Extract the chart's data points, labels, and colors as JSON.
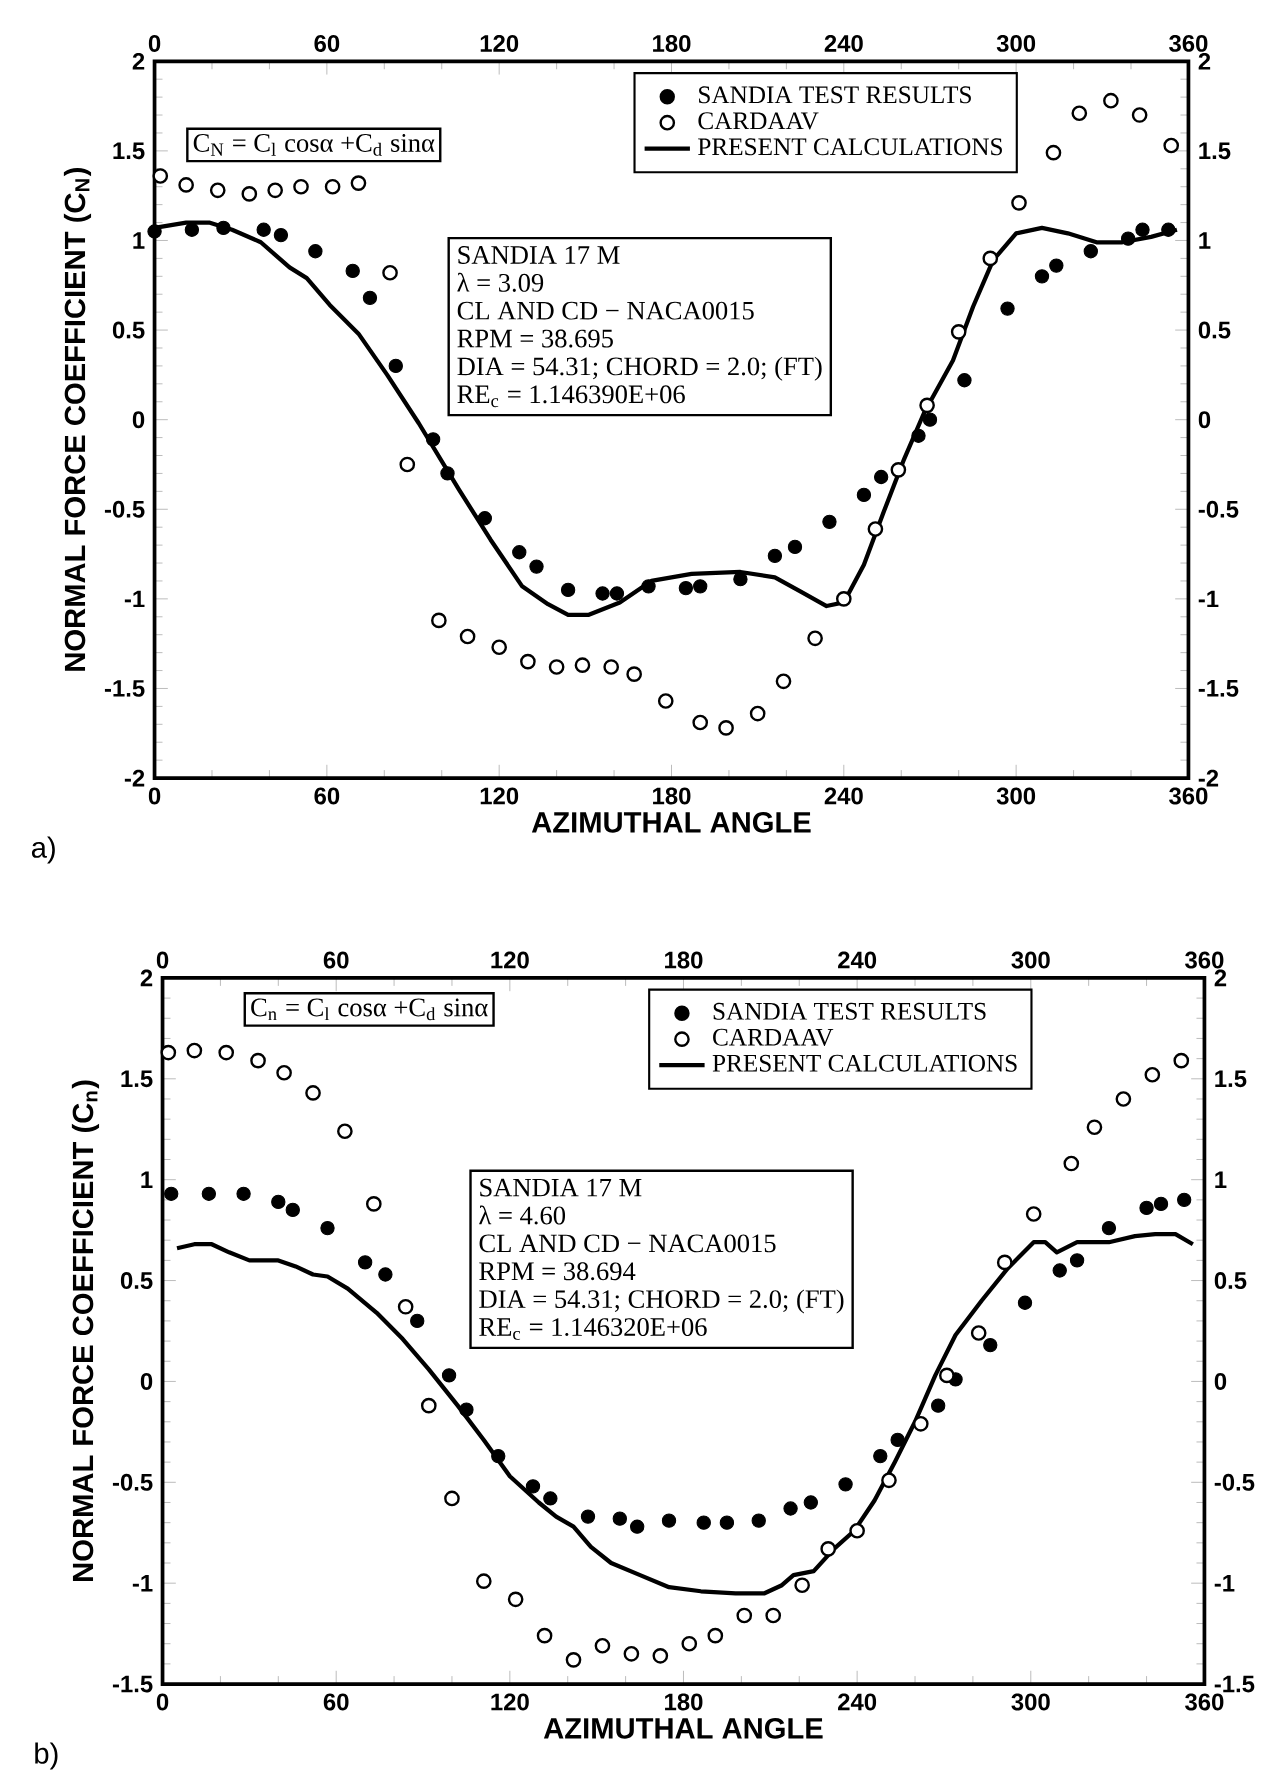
{
  "chart_data": [
    {
      "type": "scatter",
      "xlabel": "AZIMUTHAL ANGLE",
      "ylabel": "NORMAL FORCE COEFFICIENT (C$_{N}$)",
      "xlim": [
        0,
        360
      ],
      "xticks": [
        0,
        60,
        120,
        180,
        240,
        300,
        360
      ],
      "ylim": [
        -2,
        2
      ],
      "yticks": [
        -2,
        -1.5,
        -1,
        -0.5,
        0,
        0.5,
        1,
        1.5,
        2
      ],
      "x2lim": [
        0,
        360
      ],
      "x2ticks": [
        0,
        60,
        120,
        180,
        240,
        300,
        360
      ],
      "y2lim": [
        -2,
        2
      ],
      "y2ticks": [
        -2,
        -1.5,
        -1,
        -0.5,
        0,
        0.5,
        1,
        1.5,
        2
      ],
      "legend": "top right",
      "annotations": [
        "C$_{N}$ = C$_{l}$ cosα +C$_{d}$ sinα",
        "SANDIA 17 M",
        "λ =  3.09",
        "CL AND CD −  NACA0015",
        "RPM =  38.695",
        "DIA =  54.31; CHORD = 2.0; (FT)",
        "RE$_{c}$ =  1.146390E+06",
        "a)"
      ],
      "series": [
        {
          "name": "SANDIA TEST RESULTS",
          "marker": "circle",
          "color": "#000000",
          "x": [
            0,
            13,
            24,
            38,
            44,
            56,
            69,
            75,
            84,
            97,
            102,
            115,
            127,
            133,
            144,
            156,
            161,
            172,
            185,
            190,
            204,
            216,
            223,
            235,
            247,
            253,
            266,
            270,
            282,
            297,
            309,
            314,
            326,
            339,
            344,
            353
          ],
          "values": [
            1.05,
            1.06,
            1.07,
            1.06,
            1.03,
            0.94,
            0.83,
            0.68,
            0.3,
            -0.11,
            -0.3,
            -0.55,
            -0.74,
            -0.82,
            -0.95,
            -0.97,
            -0.97,
            -0.93,
            -0.94,
            -0.93,
            -0.89,
            -0.76,
            -0.71,
            -0.57,
            -0.42,
            -0.32,
            -0.09,
            0.0,
            0.22,
            0.62,
            0.8,
            0.86,
            0.94,
            1.01,
            1.06,
            1.06
          ]
        },
        {
          "name": "CARDAAV",
          "marker": "circle",
          "color": "#000000",
          "x": [
            2,
            11,
            22,
            33,
            42,
            51,
            62,
            71,
            82,
            88,
            99,
            109,
            120,
            130,
            140,
            149,
            159,
            167,
            178,
            190,
            199,
            210,
            219,
            230,
            240,
            251,
            259,
            269,
            280,
            291,
            301,
            313,
            322,
            333,
            343,
            354
          ],
          "values": [
            1.36,
            1.31,
            1.28,
            1.26,
            1.28,
            1.3,
            1.3,
            1.32,
            0.82,
            -0.25,
            -1.12,
            -1.21,
            -1.27,
            -1.35,
            -1.38,
            -1.37,
            -1.38,
            -1.42,
            -1.57,
            -1.69,
            -1.72,
            -1.64,
            -1.46,
            -1.22,
            -1.0,
            -0.61,
            -0.28,
            0.08,
            0.49,
            0.9,
            1.21,
            1.49,
            1.71,
            1.78,
            1.7,
            1.53
          ]
        },
        {
          "name": "PRESENT CALCULATIONS",
          "type": "line",
          "marker": "none",
          "line_style": "solid",
          "color": "#000000",
          "x": [
            0,
            11,
            19,
            27,
            37,
            47,
            53,
            61,
            71,
            81,
            92,
            106,
            117,
            128,
            137,
            144,
            151,
            162,
            173,
            187,
            204,
            216,
            225,
            234,
            240,
            247,
            254,
            261,
            268,
            278,
            285,
            292,
            300,
            309,
            318,
            328,
            337,
            347,
            356
          ],
          "values": [
            1.07,
            1.1,
            1.1,
            1.06,
            0.99,
            0.85,
            0.79,
            0.64,
            0.48,
            0.25,
            -0.02,
            -0.39,
            -0.67,
            -0.93,
            -1.03,
            -1.09,
            -1.09,
            -1.02,
            -0.9,
            -0.86,
            -0.85,
            -0.88,
            -0.96,
            -1.04,
            -1.02,
            -0.81,
            -0.51,
            -0.22,
            0.04,
            0.33,
            0.63,
            0.89,
            1.04,
            1.07,
            1.04,
            0.99,
            0.99,
            1.02,
            1.06
          ]
        }
      ]
    },
    {
      "type": "scatter",
      "xlabel": "AZIMUTHAL ANGLE",
      "ylabel": "NORMAL FORCE COEFFICIENT (C$_{n}$)",
      "xlim": [
        0,
        360
      ],
      "xticks": [
        0,
        60,
        120,
        180,
        240,
        300,
        360
      ],
      "ylim": [
        -1.5,
        2
      ],
      "yticks": [
        -1.5,
        -1,
        -0.5,
        0,
        0.5,
        1,
        1.5,
        2
      ],
      "x2lim": [
        0,
        360
      ],
      "x2ticks": [
        0,
        60,
        120,
        180,
        240,
        300,
        360
      ],
      "y2lim": [
        -1.5,
        2
      ],
      "y2ticks": [
        -1.5,
        -1,
        -0.5,
        0,
        0.5,
        1,
        1.5,
        2
      ],
      "legend": "top right",
      "annotations": [
        "C$_{n}$ = C$_{l}$ cosα +C$_{d}$ sinα",
        "SANDIA 17 M",
        "λ =  4.60",
        "CL AND CD −  NACA0015",
        "RPM =  38.694",
        "DIA =  54.31; CHORD = 2.0; (FT)",
        "RE$_{c}$ =  1.146320E+06",
        "b)"
      ],
      "series": [
        {
          "name": "SANDIA TEST RESULTS",
          "marker": "circle",
          "color": "#000000",
          "x": [
            3,
            16,
            28,
            40,
            45,
            57,
            70,
            77,
            88,
            99,
            105,
            116,
            128,
            134,
            147,
            158,
            164,
            175,
            187,
            195,
            206,
            217,
            224,
            236,
            248,
            254,
            268,
            274,
            286,
            298,
            310,
            316,
            327,
            340,
            345,
            353
          ],
          "values": [
            0.93,
            0.93,
            0.93,
            0.89,
            0.85,
            0.76,
            0.59,
            0.53,
            0.3,
            0.03,
            -0.14,
            -0.37,
            -0.52,
            -0.58,
            -0.67,
            -0.68,
            -0.72,
            -0.69,
            -0.7,
            -0.7,
            -0.69,
            -0.63,
            -0.6,
            -0.51,
            -0.37,
            -0.29,
            -0.12,
            0.01,
            0.18,
            0.39,
            0.55,
            0.6,
            0.76,
            0.86,
            0.88,
            0.9
          ]
        },
        {
          "name": "CARDAAV",
          "marker": "circle",
          "color": "#000000",
          "x": [
            2,
            11,
            22,
            33,
            42,
            52,
            63,
            73,
            84,
            92,
            100,
            111,
            122,
            132,
            142,
            152,
            162,
            172,
            182,
            191,
            201,
            211,
            221,
            230,
            240,
            251,
            262,
            271,
            282,
            291,
            301,
            314,
            322,
            332,
            342,
            352
          ],
          "values": [
            1.63,
            1.64,
            1.63,
            1.59,
            1.53,
            1.43,
            1.24,
            0.88,
            0.37,
            -0.12,
            -0.58,
            -0.99,
            -1.08,
            -1.26,
            -1.38,
            -1.31,
            -1.35,
            -1.36,
            -1.3,
            -1.26,
            -1.16,
            -1.16,
            -1.01,
            -0.83,
            -0.74,
            -0.49,
            -0.21,
            0.03,
            0.24,
            0.59,
            0.83,
            1.08,
            1.26,
            1.4,
            1.52,
            1.59
          ]
        },
        {
          "name": "PRESENT CALCULATIONS",
          "type": "line",
          "marker": "none",
          "line_style": "solid",
          "color": "#000000",
          "x": [
            5,
            11,
            17,
            23,
            30,
            40,
            46,
            52,
            57,
            64,
            74,
            83,
            92,
            102,
            111,
            120,
            130,
            136,
            142,
            148,
            155,
            165,
            175,
            186,
            198,
            208,
            214,
            218,
            225,
            232,
            239,
            246,
            253,
            260,
            267,
            274,
            283,
            292,
            301,
            305,
            309,
            316,
            327,
            336,
            343,
            350,
            356
          ],
          "values": [
            0.66,
            0.68,
            0.68,
            0.64,
            0.6,
            0.6,
            0.57,
            0.53,
            0.52,
            0.46,
            0.34,
            0.21,
            0.06,
            -0.12,
            -0.29,
            -0.47,
            -0.6,
            -0.67,
            -0.72,
            -0.82,
            -0.9,
            -0.96,
            -1.02,
            -1.04,
            -1.05,
            -1.05,
            -1.01,
            -0.96,
            -0.94,
            -0.83,
            -0.74,
            -0.59,
            -0.4,
            -0.2,
            0.03,
            0.23,
            0.4,
            0.56,
            0.69,
            0.69,
            0.64,
            0.69,
            0.69,
            0.72,
            0.73,
            0.73,
            0.68
          ]
        }
      ]
    }
  ]
}
